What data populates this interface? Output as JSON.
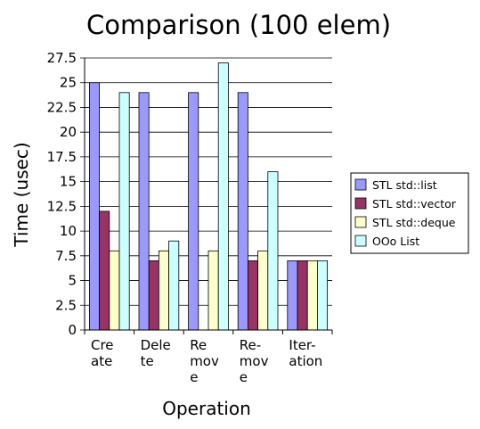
{
  "chart_data": {
    "type": "bar",
    "title": "Comparison (100 elem)",
    "xlabel": "Operation",
    "ylabel": "Time (usec)",
    "ylim": [
      0,
      27.5
    ],
    "y_ticks": [
      "0",
      "2.5",
      "5",
      "7.5",
      "10",
      "12.5",
      "15",
      "17.5",
      "20",
      "22.5",
      "25",
      "27.5"
    ],
    "y_tick_values": [
      0,
      2.5,
      5,
      7.5,
      10,
      12.5,
      15,
      17.5,
      20,
      22.5,
      25,
      27.5
    ],
    "grid": true,
    "legend_position": "right",
    "categories": [
      [
        "Cre",
        "ate"
      ],
      [
        "Dele",
        "te"
      ],
      [
        "Re",
        "mov",
        "e"
      ],
      [
        "Re-",
        "mov",
        "e"
      ],
      [
        "Iter-",
        "ation"
      ]
    ],
    "series": [
      {
        "name": "STL std::list",
        "color": "#9999ff",
        "values": [
          25,
          24,
          24,
          24,
          7
        ]
      },
      {
        "name": "STL std::vector",
        "color": "#993366",
        "values": [
          12,
          7,
          0,
          7,
          7
        ]
      },
      {
        "name": "STL std::deque",
        "color": "#ffffcc",
        "values": [
          8,
          8,
          8,
          8,
          7
        ]
      },
      {
        "name": "OOo List",
        "color": "#ccffff",
        "values": [
          24,
          9,
          27,
          16,
          7
        ]
      }
    ]
  }
}
